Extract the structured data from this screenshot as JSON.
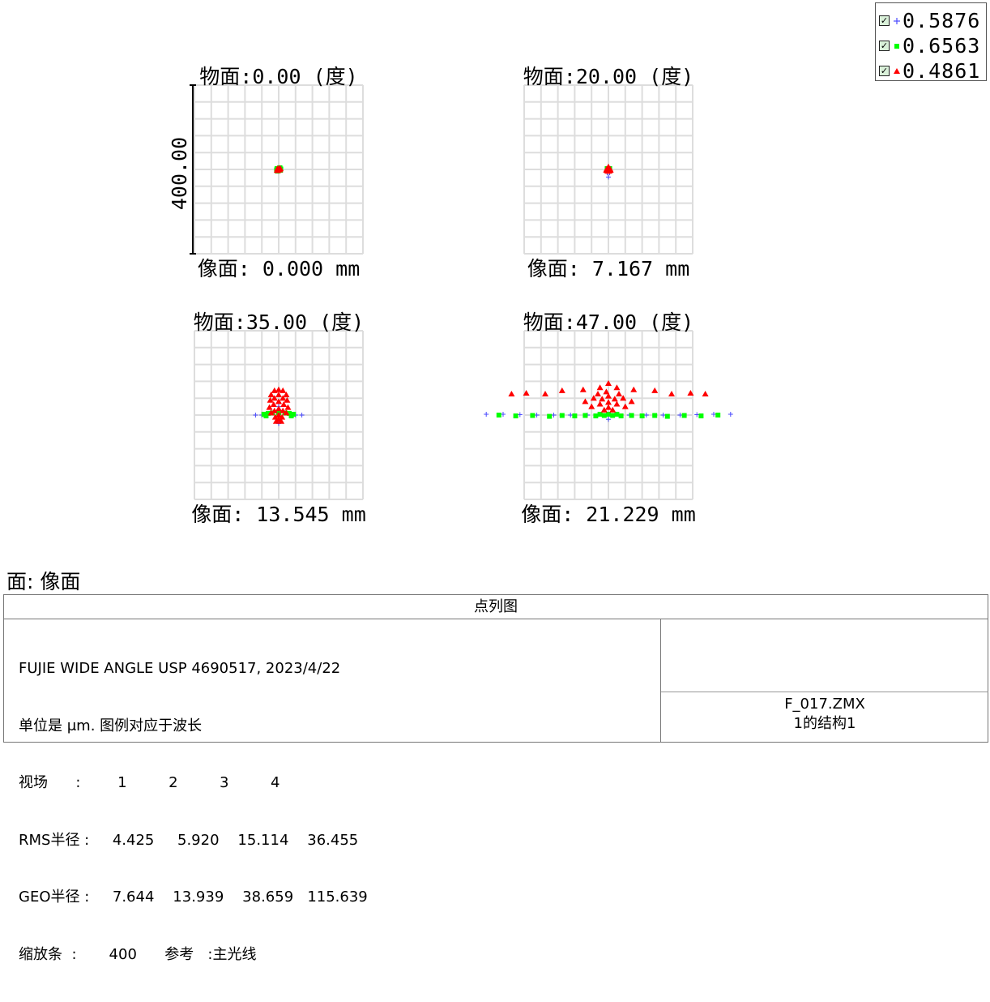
{
  "legend": [
    {
      "label": "0.5876",
      "marker": "plus-icon",
      "color": "#4a4aff"
    },
    {
      "label": "0.6563",
      "marker": "square-icon",
      "color": "#00ff00"
    },
    {
      "label": "0.4861",
      "marker": "triangle-icon",
      "color": "#ff0000"
    }
  ],
  "surface_label": "面: 像面",
  "chart_data": {
    "type": "scatter",
    "scale_bar": "400.00",
    "panels": [
      {
        "title": "物面:0.00 (度)",
        "image_height": "像面: 0.000 mm",
        "series": [
          {
            "marker": "plus",
            "color": "#4a4aff",
            "points": [
              [
                0,
                0
              ],
              [
                -3,
                2
              ],
              [
                3,
                -2
              ],
              [
                2,
                3
              ],
              [
                -2,
                -3
              ]
            ]
          },
          {
            "marker": "square",
            "color": "#00ff00",
            "points": [
              [
                0,
                0
              ],
              [
                -4,
                2
              ],
              [
                4,
                -2
              ],
              [
                3,
                4
              ],
              [
                -3,
                -4
              ],
              [
                5,
                1
              ],
              [
                -5,
                -1
              ]
            ]
          },
          {
            "marker": "triangle",
            "color": "#ff0000",
            "points": [
              [
                0,
                0
              ],
              [
                -3,
                2
              ],
              [
                3,
                -1
              ],
              [
                1,
                3
              ],
              [
                -2,
                -3
              ],
              [
                4,
                2
              ],
              [
                -4,
                -2
              ]
            ]
          }
        ]
      },
      {
        "title": "物面:20.00 (度)",
        "image_height": "像面: 7.167 mm",
        "series": [
          {
            "marker": "plus",
            "color": "#4a4aff",
            "points": [
              [
                0,
                0
              ],
              [
                0,
                -18
              ],
              [
                -3,
                -8
              ],
              [
                3,
                -8
              ],
              [
                0,
                6
              ]
            ]
          },
          {
            "marker": "square",
            "color": "#00ff00",
            "points": [
              [
                0,
                0
              ],
              [
                -3,
                2
              ],
              [
                3,
                2
              ]
            ]
          },
          {
            "marker": "triangle",
            "color": "#ff0000",
            "points": [
              [
                0,
                0
              ],
              [
                -4,
                1
              ],
              [
                4,
                1
              ],
              [
                0,
                6
              ],
              [
                -2,
                -4
              ],
              [
                2,
                -4
              ],
              [
                0,
                -4
              ],
              [
                -5,
                -2
              ],
              [
                5,
                -2
              ]
            ]
          }
        ]
      },
      {
        "title": "物面:35.00 (度)",
        "image_height": "像面: 13.545 mm",
        "series": [
          {
            "marker": "plus",
            "color": "#4a4aff",
            "points": [
              [
                -55,
                0
              ],
              [
                55,
                0
              ],
              [
                -40,
                0
              ],
              [
                40,
                0
              ],
              [
                -25,
                0
              ],
              [
                25,
                0
              ],
              [
                0,
                -20
              ],
              [
                0,
                20
              ]
            ]
          },
          {
            "marker": "square",
            "color": "#00ff00",
            "points": [
              [
                -35,
                2
              ],
              [
                35,
                2
              ],
              [
                -25,
                4
              ],
              [
                25,
                4
              ],
              [
                -15,
                5
              ],
              [
                15,
                5
              ],
              [
                0,
                5
              ],
              [
                -30,
                -2
              ],
              [
                30,
                -2
              ]
            ]
          },
          {
            "marker": "triangle",
            "color": "#ff0000",
            "points": [
              [
                0,
                60
              ],
              [
                -10,
                58
              ],
              [
                10,
                58
              ],
              [
                -18,
                48
              ],
              [
                18,
                48
              ],
              [
                0,
                48
              ],
              [
                -10,
                40
              ],
              [
                10,
                40
              ],
              [
                -20,
                35
              ],
              [
                20,
                35
              ],
              [
                0,
                32
              ],
              [
                -12,
                25
              ],
              [
                12,
                25
              ],
              [
                -22,
                18
              ],
              [
                22,
                18
              ],
              [
                0,
                15
              ],
              [
                -10,
                10
              ],
              [
                10,
                10
              ],
              [
                -18,
                5
              ],
              [
                18,
                5
              ],
              [
                0,
                0
              ],
              [
                -8,
                -5
              ],
              [
                8,
                -5
              ],
              [
                0,
                -10
              ],
              [
                -6,
                -15
              ],
              [
                6,
                -15
              ]
            ]
          }
        ]
      },
      {
        "title": "物面:47.00 (度)",
        "image_height": "像面: 21.229 mm",
        "series": [
          {
            "marker": "plus",
            "color": "#4a4aff",
            "points": [
              [
                -290,
                2
              ],
              [
                290,
                2
              ],
              [
                -250,
                2
              ],
              [
                250,
                2
              ],
              [
                -210,
                1
              ],
              [
                210,
                1
              ],
              [
                -170,
                0
              ],
              [
                170,
                0
              ],
              [
                -130,
                0
              ],
              [
                130,
                0
              ],
              [
                -90,
                0
              ],
              [
                90,
                0
              ],
              [
                -50,
                0
              ],
              [
                50,
                0
              ],
              [
                0,
                0
              ],
              [
                0,
                -10
              ]
            ]
          },
          {
            "marker": "square",
            "color": "#00ff00",
            "points": [
              [
                -260,
                0
              ],
              [
                260,
                0
              ],
              [
                -220,
                -2
              ],
              [
                220,
                -2
              ],
              [
                -180,
                -1
              ],
              [
                180,
                -1
              ],
              [
                -140,
                -3
              ],
              [
                140,
                -3
              ],
              [
                -110,
                -1
              ],
              [
                110,
                -1
              ],
              [
                -80,
                -2
              ],
              [
                80,
                -2
              ],
              [
                -55,
                -1
              ],
              [
                55,
                -1
              ],
              [
                -30,
                -2
              ],
              [
                30,
                -2
              ],
              [
                -10,
                -1
              ],
              [
                10,
                -1
              ],
              [
                -20,
                2
              ],
              [
                20,
                2
              ],
              [
                0,
                2
              ]
            ]
          },
          {
            "marker": "triangle",
            "color": "#ff0000",
            "points": [
              [
                0,
                75
              ],
              [
                -20,
                65
              ],
              [
                20,
                65
              ],
              [
                -110,
                58
              ],
              [
                110,
                58
              ],
              [
                -60,
                60
              ],
              [
                60,
                60
              ],
              [
                -230,
                50
              ],
              [
                230,
                50
              ],
              [
                -195,
                52
              ],
              [
                195,
                52
              ],
              [
                -150,
                50
              ],
              [
                150,
                50
              ],
              [
                -5,
                55
              ],
              [
                -25,
                50
              ],
              [
                25,
                50
              ],
              [
                0,
                45
              ],
              [
                -35,
                40
              ],
              [
                35,
                40
              ],
              [
                -15,
                38
              ],
              [
                15,
                38
              ],
              [
                -55,
                32
              ],
              [
                55,
                32
              ],
              [
                0,
                30
              ],
              [
                -20,
                26
              ],
              [
                20,
                26
              ],
              [
                -40,
                20
              ],
              [
                40,
                20
              ],
              [
                0,
                18
              ],
              [
                -10,
                12
              ],
              [
                10,
                12
              ]
            ]
          }
        ]
      }
    ]
  },
  "bottom_panel": {
    "title": "点列图",
    "lines": [
      "FUJIE WIDE ANGLE USP 4690517, 2023/4/22",
      "单位是 μm. 图例对应于波长",
      "视场      :        1         2         3         4",
      "RMS半径 :     4.425     5.920    15.114    36.455",
      "GEO半径 :     7.644    13.939    38.659   115.639",
      "缩放条  :       400      参考   :主光线"
    ],
    "file_name": "F_017.ZMX",
    "config": "1的结构1"
  }
}
